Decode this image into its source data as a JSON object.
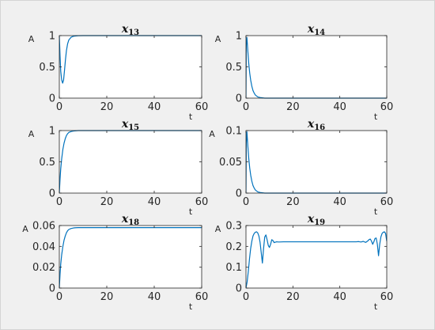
{
  "colors": {
    "background": "#f0f0f0",
    "axes_background": "#ffffff",
    "axes_line": "#262626",
    "series": "#0072bd"
  },
  "chart_data": [
    {
      "type": "line",
      "title": "x",
      "title_subscript": "13",
      "xlabel": "t",
      "ylabel": "A",
      "xlim": [
        0,
        60
      ],
      "ylim": [
        0,
        1
      ],
      "xticks": [
        0,
        20,
        40,
        60
      ],
      "yticks": [
        0,
        0.5,
        1
      ],
      "xtick_labels": [
        "0",
        "20",
        "40",
        "60"
      ],
      "ytick_labels": [
        "0",
        "0.5",
        "1"
      ],
      "grid": false,
      "series": [
        {
          "x": [
            0,
            0.3,
            0.6,
            1.0,
            1.4,
            1.8,
            2.2,
            2.6,
            3.0,
            3.5,
            4.0,
            5.0,
            6.0,
            7.0,
            8.0,
            10.0,
            15.0,
            60.0
          ],
          "y": [
            1.0,
            0.68,
            0.43,
            0.29,
            0.24,
            0.29,
            0.45,
            0.62,
            0.76,
            0.87,
            0.93,
            0.975,
            0.99,
            0.995,
            0.998,
            1.0,
            1.0,
            1.0
          ]
        }
      ]
    },
    {
      "type": "line",
      "title": "x",
      "title_subscript": "14",
      "xlabel": "t",
      "ylabel": "A",
      "xlim": [
        0,
        60
      ],
      "ylim": [
        0,
        1
      ],
      "xticks": [
        0,
        20,
        40,
        60
      ],
      "yticks": [
        0,
        0.5,
        1
      ],
      "xtick_labels": [
        "0",
        "20",
        "40",
        "60"
      ],
      "ytick_labels": [
        "0",
        "0.5",
        "1"
      ],
      "grid": false,
      "series": [
        {
          "x": [
            0,
            0.15,
            0.4,
            0.8,
            1.2,
            1.6,
            2.0,
            2.5,
            3.0,
            3.5,
            4.0,
            5.0,
            6.0,
            7.0,
            8.0,
            10.0,
            12.0,
            60.0
          ],
          "y": [
            0.0,
            0.85,
            0.97,
            0.75,
            0.55,
            0.4,
            0.29,
            0.19,
            0.12,
            0.08,
            0.05,
            0.02,
            0.01,
            0.005,
            0.0,
            0.0,
            0.0,
            0.0
          ]
        }
      ]
    },
    {
      "type": "line",
      "title": "x",
      "title_subscript": "15",
      "xlabel": "t",
      "ylabel": "A",
      "xlim": [
        0,
        60
      ],
      "ylim": [
        0,
        1
      ],
      "xticks": [
        0,
        20,
        40,
        60
      ],
      "yticks": [
        0,
        0.5,
        1
      ],
      "xtick_labels": [
        "0",
        "20",
        "40",
        "60"
      ],
      "ytick_labels": [
        "0",
        "0.5",
        "1"
      ],
      "grid": false,
      "series": [
        {
          "x": [
            0,
            0.3,
            0.6,
            1.0,
            1.5,
            2.0,
            2.5,
            3.0,
            3.5,
            4.0,
            5.0,
            6.0,
            7.0,
            8.0,
            10.0,
            15.0,
            60.0
          ],
          "y": [
            0.0,
            0.22,
            0.39,
            0.55,
            0.7,
            0.8,
            0.87,
            0.92,
            0.95,
            0.97,
            0.985,
            0.993,
            0.997,
            1.0,
            1.0,
            1.0,
            1.0
          ]
        }
      ]
    },
    {
      "type": "line",
      "title": "x",
      "title_subscript": "16",
      "xlabel": "t",
      "ylabel": "A",
      "xlim": [
        0,
        60
      ],
      "ylim": [
        0,
        0.1
      ],
      "xticks": [
        0,
        20,
        40,
        60
      ],
      "yticks": [
        0,
        0.05,
        0.1
      ],
      "xtick_labels": [
        "0",
        "20",
        "40",
        "60"
      ],
      "ytick_labels": [
        "0",
        "0.05",
        "0.1"
      ],
      "grid": false,
      "series": [
        {
          "x": [
            0,
            0.15,
            0.4,
            0.8,
            1.2,
            1.6,
            2.0,
            2.5,
            3.0,
            3.5,
            4.0,
            5.0,
            6.0,
            7.0,
            8.0,
            10.0,
            60.0
          ],
          "y": [
            0.0,
            0.08,
            0.098,
            0.075,
            0.055,
            0.04,
            0.029,
            0.019,
            0.012,
            0.008,
            0.005,
            0.002,
            0.001,
            0.0005,
            0.0,
            0.0,
            0.0
          ]
        }
      ]
    },
    {
      "type": "line",
      "title": "x",
      "title_subscript": "18",
      "xlabel": "t",
      "ylabel": "A",
      "xlim": [
        0,
        60
      ],
      "ylim": [
        0,
        0.06
      ],
      "xticks": [
        0,
        20,
        40,
        60
      ],
      "yticks": [
        0,
        0.02,
        0.04,
        0.06
      ],
      "xtick_labels": [
        "0",
        "20",
        "40",
        "60"
      ],
      "ytick_labels": [
        "0",
        "0.02",
        "0.04",
        "0.06"
      ],
      "grid": false,
      "series": [
        {
          "x": [
            0,
            0.3,
            0.6,
            1.0,
            1.5,
            2.0,
            2.5,
            3.0,
            3.5,
            4.0,
            5.0,
            6.0,
            7.0,
            8.0,
            10.0,
            15.0,
            60.0
          ],
          "y": [
            0.0,
            0.013,
            0.023,
            0.032,
            0.04,
            0.046,
            0.05,
            0.053,
            0.055,
            0.0562,
            0.0572,
            0.0577,
            0.0579,
            0.058,
            0.058,
            0.058,
            0.058
          ]
        }
      ]
    },
    {
      "type": "line",
      "title": "x",
      "title_subscript": "19",
      "xlabel": "t",
      "ylabel": "A",
      "xlim": [
        0,
        60
      ],
      "ylim": [
        0,
        0.3
      ],
      "xticks": [
        0,
        20,
        40,
        60
      ],
      "yticks": [
        0,
        0.1,
        0.2,
        0.3
      ],
      "xtick_labels": [
        "0",
        "20",
        "40",
        "60"
      ],
      "ytick_labels": [
        "0",
        "0.1",
        "0.2",
        "0.3"
      ],
      "grid": false,
      "series": [
        {
          "x": [
            0,
            0.5,
            1.0,
            1.5,
            2.0,
            2.5,
            3.0,
            3.5,
            4.0,
            4.5,
            5.0,
            5.5,
            6.0,
            6.5,
            7.0,
            7.5,
            8.0,
            8.5,
            9.0,
            9.5,
            10.0,
            10.5,
            11.0,
            11.5,
            12.0,
            13.0,
            14.0,
            16.0,
            20.0,
            30.0,
            40.0,
            47.0,
            48.0,
            49.0,
            50.0,
            51.0,
            52.0,
            52.5,
            53.0,
            53.5,
            54.0,
            54.5,
            55.0,
            55.5,
            56.0,
            56.5,
            57.0,
            57.5,
            58.0,
            58.5,
            59.0,
            59.5,
            60.0
          ],
          "y": [
            0.0,
            0.03,
            0.08,
            0.14,
            0.19,
            0.225,
            0.25,
            0.262,
            0.268,
            0.27,
            0.265,
            0.25,
            0.22,
            0.17,
            0.12,
            0.19,
            0.245,
            0.255,
            0.232,
            0.205,
            0.195,
            0.21,
            0.232,
            0.228,
            0.218,
            0.222,
            0.221,
            0.222,
            0.222,
            0.222,
            0.222,
            0.222,
            0.223,
            0.221,
            0.224,
            0.219,
            0.227,
            0.233,
            0.235,
            0.225,
            0.21,
            0.222,
            0.238,
            0.24,
            0.21,
            0.155,
            0.21,
            0.245,
            0.262,
            0.268,
            0.27,
            0.262,
            0.225
          ]
        }
      ]
    }
  ]
}
